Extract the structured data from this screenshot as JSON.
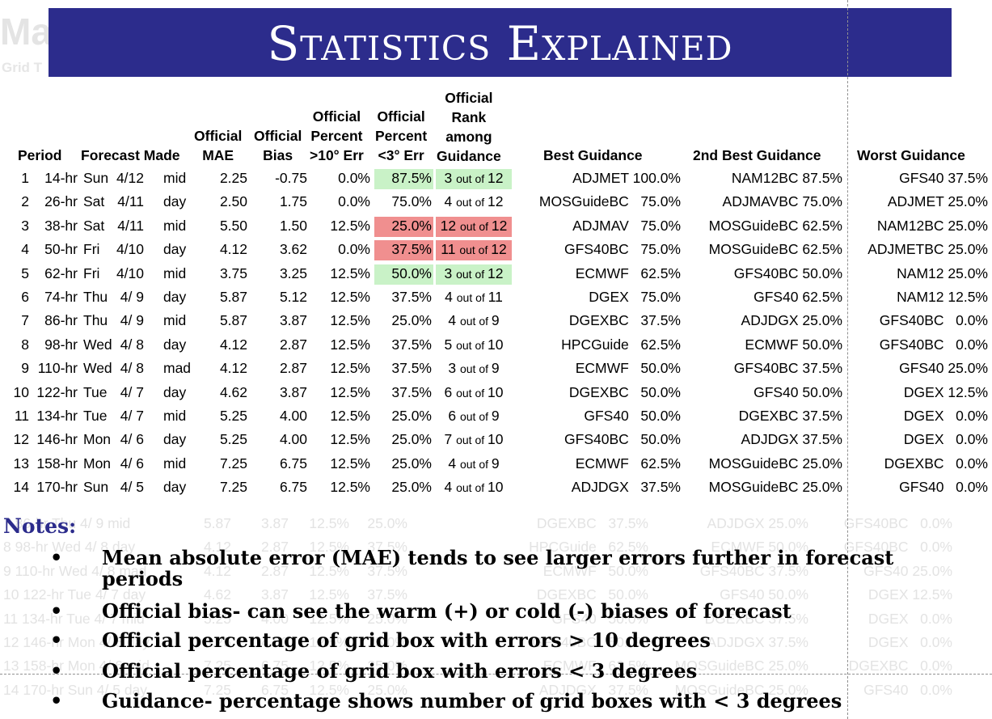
{
  "background_ghost": {
    "title": "Ma",
    "subtitle": "Grid T"
  },
  "banner": {
    "title": "Statistics Explained"
  },
  "table": {
    "headers": {
      "period": "Period",
      "forecast_made": "Forecast Made",
      "mae": [
        "Official",
        "MAE"
      ],
      "bias": [
        "Official",
        "Bias"
      ],
      "pct10": [
        "Official",
        "Percent",
        ">10° Err"
      ],
      "pct3": [
        "Official",
        "Percent",
        "<3° Err"
      ],
      "rank": [
        "Official",
        "Rank",
        "among",
        "Guidance"
      ],
      "best": "Best Guidance",
      "second": "2nd Best Guidance",
      "worst": "Worst Guidance"
    },
    "rows": [
      {
        "n": "1",
        "hr": "14-hr",
        "day": "Sun",
        "date": "4/12",
        "tod": "mid",
        "mae": "2.25",
        "bias": "-0.75",
        "p10": "0.0%",
        "p3": "87.5%",
        "rank": "3",
        "of": "out of",
        "tot": "12",
        "best": "ADJMET 100.0%",
        "second": "NAM12BC 87.5%",
        "worst": "GFS40 37.5%",
        "hl": "green"
      },
      {
        "n": "2",
        "hr": "26-hr",
        "day": "Sat",
        "date": "4/11",
        "tod": "day",
        "mae": "2.50",
        "bias": "1.75",
        "p10": "0.0%",
        "p3": "75.0%",
        "rank": "4",
        "of": "out of",
        "tot": "12",
        "best": "MOSGuideBC   75.0%",
        "second": "ADJMAVBC 75.0%",
        "worst": "ADJMET 25.0%",
        "hl": ""
      },
      {
        "n": "3",
        "hr": "38-hr",
        "day": "Sat",
        "date": "4/11",
        "tod": "mid",
        "mae": "5.50",
        "bias": "1.50",
        "p10": "12.5%",
        "p3": "25.0%",
        "rank": "12",
        "of": "out of",
        "tot": "12",
        "best": "ADJMAV   75.0%",
        "second": "MOSGuideBC 62.5%",
        "worst": "NAM12BC 25.0%",
        "hl": "red"
      },
      {
        "n": "4",
        "hr": "50-hr",
        "day": "Fri",
        "date": "4/10",
        "tod": "day",
        "mae": "4.12",
        "bias": "3.62",
        "p10": "0.0%",
        "p3": "37.5%",
        "rank": "11",
        "of": "out of",
        "tot": "12",
        "best": "GFS40BC   75.0%",
        "second": "MOSGuideBC 62.5%",
        "worst": "ADJMETBC 25.0%",
        "hl": "red"
      },
      {
        "n": "5",
        "hr": "62-hr",
        "day": "Fri",
        "date": "4/10",
        "tod": "mid",
        "mae": "3.75",
        "bias": "3.25",
        "p10": "12.5%",
        "p3": "50.0%",
        "rank": "3",
        "of": "out of",
        "tot": "12",
        "best": "ECMWF   62.5%",
        "second": "GFS40BC 50.0%",
        "worst": "NAM12 25.0%",
        "hl": "green"
      },
      {
        "n": "6",
        "hr": "74-hr",
        "day": "Thu",
        "date": "4/ 9",
        "tod": "day",
        "mae": "5.87",
        "bias": "5.12",
        "p10": "12.5%",
        "p3": "37.5%",
        "rank": "4",
        "of": "out of",
        "tot": "11",
        "best": "DGEX   75.0%",
        "second": "GFS40 62.5%",
        "worst": "NAM12 12.5%",
        "hl": ""
      },
      {
        "n": "7",
        "hr": "86-hr",
        "day": "Thu",
        "date": "4/ 9",
        "tod": "mid",
        "mae": "5.87",
        "bias": "3.87",
        "p10": "12.5%",
        "p3": "25.0%",
        "rank": "4",
        "of": "out of",
        "tot": "9",
        "best": "DGEXBC   37.5%",
        "second": "ADJDGX 25.0%",
        "worst": "GFS40BC   0.0%",
        "hl": ""
      },
      {
        "n": "8",
        "hr": "98-hr",
        "day": "Wed",
        "date": "4/ 8",
        "tod": "day",
        "mae": "4.12",
        "bias": "2.87",
        "p10": "12.5%",
        "p3": "37.5%",
        "rank": "5",
        "of": "out of",
        "tot": "10",
        "best": "HPCGuide   62.5%",
        "second": "ECMWF 50.0%",
        "worst": "GFS40BC   0.0%",
        "hl": ""
      },
      {
        "n": "9",
        "hr": "110-hr",
        "day": "Wed",
        "date": "4/ 8",
        "tod": "mad",
        "mae": "4.12",
        "bias": "2.87",
        "p10": "12.5%",
        "p3": "37.5%",
        "rank": "3",
        "of": "out of",
        "tot": "9",
        "best": "ECMWF   50.0%",
        "second": "GFS40BC 37.5%",
        "worst": "GFS40 25.0%",
        "hl": ""
      },
      {
        "n": "10",
        "hr": "122-hr",
        "day": "Tue",
        "date": "4/ 7",
        "tod": "day",
        "mae": "4.62",
        "bias": "3.87",
        "p10": "12.5%",
        "p3": "37.5%",
        "rank": "6",
        "of": "out of",
        "tot": "10",
        "best": "DGEXBC   50.0%",
        "second": "GFS40 50.0%",
        "worst": "DGEX 12.5%",
        "hl": ""
      },
      {
        "n": "11",
        "hr": "134-hr",
        "day": "Tue",
        "date": "4/ 7",
        "tod": "mid",
        "mae": "5.25",
        "bias": "4.00",
        "p10": "12.5%",
        "p3": "25.0%",
        "rank": "6",
        "of": "out of",
        "tot": "9",
        "best": "GFS40   50.0%",
        "second": "DGEXBC 37.5%",
        "worst": "DGEX   0.0%",
        "hl": ""
      },
      {
        "n": "12",
        "hr": "146-hr",
        "day": "Mon",
        "date": "4/ 6",
        "tod": "day",
        "mae": "5.25",
        "bias": "4.00",
        "p10": "12.5%",
        "p3": "25.0%",
        "rank": "7",
        "of": "out of",
        "tot": "10",
        "best": "GFS40BC   50.0%",
        "second": "ADJDGX 37.5%",
        "worst": "DGEX   0.0%",
        "hl": ""
      },
      {
        "n": "13",
        "hr": "158-hr",
        "day": "Mon",
        "date": "4/ 6",
        "tod": "mid",
        "mae": "7.25",
        "bias": "6.75",
        "p10": "12.5%",
        "p3": "25.0%",
        "rank": "4",
        "of": "out of",
        "tot": "9",
        "best": "ECMWF   62.5%",
        "second": "MOSGuideBC 25.0%",
        "worst": "DGEXBC   0.0%",
        "hl": ""
      },
      {
        "n": "14",
        "hr": "170-hr",
        "day": "Sun",
        "date": "4/ 5",
        "tod": "day",
        "mae": "7.25",
        "bias": "6.75",
        "p10": "12.5%",
        "p3": "25.0%",
        "rank": "4",
        "of": "out of",
        "tot": "10",
        "best": "ADJDGX   37.5%",
        "second": "MOSGuideBC 25.0%",
        "worst": "GFS40   0.0%",
        "hl": ""
      }
    ]
  },
  "notes": {
    "title": "Notes:",
    "bullet_glyph": "•",
    "items": [
      "Mean absolute error (MAE) tends to see larger errors further in forecast periods",
      "Official bias- can see the warm (+) or cold (-) biases of forecast",
      "Official percentage of grid box with errors > 10 degrees",
      "Official percentage of grid box with errors < 3 degrees",
      "Guidance- percentage shows number of grid boxes with < 3 degrees"
    ]
  },
  "colors": {
    "banner": "#2c2c8c",
    "good_highlight": "#c9f2c7",
    "bad_highlight": "#f08f8f",
    "notes_title": "#2c2c8c"
  }
}
